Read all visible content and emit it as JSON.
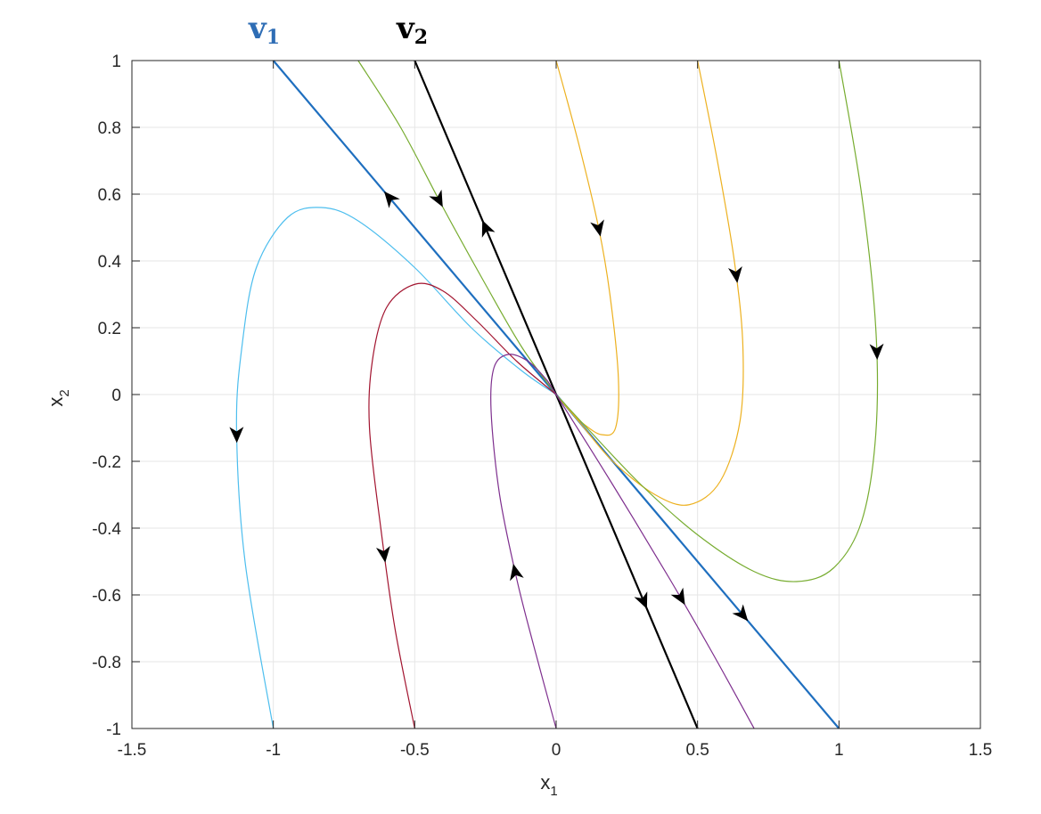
{
  "chart_data": {
    "type": "line",
    "title": "",
    "xlabel": "x",
    "xlabel_sub": "1",
    "ylabel": "x",
    "ylabel_sub": "2",
    "xlim": [
      -1.5,
      1.5
    ],
    "ylim": [
      -1,
      1
    ],
    "xticks": [
      -1.5,
      -1,
      -0.5,
      0,
      0.5,
      1,
      1.5
    ],
    "yticks": [
      -1,
      -0.8,
      -0.6,
      -0.4,
      -0.2,
      0,
      0.2,
      0.4,
      0.6,
      0.8,
      1
    ],
    "xtick_labels": [
      "-1.5",
      "-1",
      "-0.5",
      "0",
      "0.5",
      "1",
      "1.5"
    ],
    "ytick_labels": [
      "-1",
      "-0.8",
      "-0.6",
      "-0.4",
      "-0.2",
      "0",
      "0.2",
      "0.4",
      "0.6",
      "0.8",
      "1"
    ],
    "grid": true,
    "eigenvector_labels": [
      {
        "base": "v",
        "sub": "1",
        "color": "#2e6db5"
      },
      {
        "base": "v",
        "sub": "2",
        "color": "#000000"
      }
    ],
    "series": [
      {
        "color": "#1f6fbf",
        "width": 2.2,
        "x": [
          -1,
          0,
          1
        ],
        "y": [
          1,
          0,
          -1
        ],
        "arrows": [
          {
            "x": -0.59,
            "y": 0.59,
            "dir": "in"
          },
          {
            "x": 0.66,
            "y": -0.66,
            "dir": "out"
          }
        ]
      },
      {
        "color": "#000000",
        "width": 2.2,
        "x": [
          -0.5,
          0,
          0.5
        ],
        "y": [
          1,
          0,
          -1
        ],
        "arrows": [
          {
            "x": -0.25,
            "y": 0.5,
            "dir": "in"
          },
          {
            "x": 0.31,
            "y": -0.62,
            "dir": "out"
          }
        ]
      },
      {
        "color": "#77ac30",
        "width": 1.2,
        "x": [
          -0.7,
          -0.55,
          -0.4,
          -0.25,
          -0.12,
          0
        ],
        "y": [
          1,
          0.8,
          0.56,
          0.33,
          0.14,
          0
        ],
        "arrows": [
          {
            "x": -0.42,
            "y": 0.58,
            "dir": "in"
          }
        ]
      },
      {
        "color": "#edb120",
        "width": 1.2,
        "x": [
          0,
          0.08,
          0.15,
          0.19,
          0.22,
          0.21,
          0.16,
          0.1,
          0.05,
          0
        ],
        "y": [
          1,
          0.75,
          0.5,
          0.3,
          0.05,
          -0.1,
          -0.12,
          -0.09,
          -0.05,
          0
        ],
        "arrows": [
          {
            "x": 0.165,
            "y": 0.5,
            "dir": "in"
          }
        ]
      },
      {
        "color": "#edb120",
        "width": 1.2,
        "x": [
          0.5,
          0.57,
          0.63,
          0.66,
          0.65,
          0.58,
          0.47,
          0.35,
          0.2,
          0.08,
          0
        ],
        "y": [
          1,
          0.7,
          0.4,
          0.15,
          -0.08,
          -0.26,
          -0.33,
          -0.3,
          -0.2,
          -0.08,
          0
        ],
        "arrows": [
          {
            "x": 0.645,
            "y": 0.36,
            "dir": "in"
          }
        ]
      },
      {
        "color": "#77ac30",
        "width": 1.2,
        "x": [
          1,
          1.08,
          1.13,
          1.13,
          1.08,
          0.98,
          0.85,
          0.7,
          0.5,
          0.3,
          0.12,
          0
        ],
        "y": [
          1,
          0.6,
          0.2,
          -0.12,
          -0.38,
          -0.52,
          -0.56,
          -0.53,
          -0.42,
          -0.27,
          -0.11,
          0
        ],
        "arrows": [
          {
            "x": 1.13,
            "y": 0.13,
            "dir": "in"
          }
        ]
      },
      {
        "color": "#4dbeee",
        "width": 1.2,
        "x": [
          -1,
          -1.1,
          -1.13,
          -1.11,
          -1.06,
          -0.95,
          -0.83,
          -0.7,
          -0.5,
          -0.3,
          -0.12,
          0
        ],
        "y": [
          -1,
          -0.5,
          -0.1,
          0.15,
          0.38,
          0.53,
          0.56,
          0.52,
          0.38,
          0.2,
          0.07,
          0
        ],
        "arrows": [
          {
            "x": -1.12,
            "y": -0.12,
            "dir": "out"
          }
        ]
      },
      {
        "color": "#a2142f",
        "width": 1.2,
        "x": [
          -0.5,
          -0.57,
          -0.62,
          -0.66,
          -0.65,
          -0.6,
          -0.5,
          -0.4,
          -0.28,
          -0.14,
          0
        ],
        "y": [
          -1,
          -0.7,
          -0.4,
          -0.1,
          0.1,
          0.26,
          0.33,
          0.31,
          0.22,
          0.1,
          0
        ],
        "arrows": [
          {
            "x": -0.61,
            "y": -0.48,
            "dir": "out"
          }
        ]
      },
      {
        "color": "#7e2f8e",
        "width": 1.2,
        "x": [
          0,
          -0.08,
          -0.14,
          -0.2,
          -0.23,
          -0.22,
          -0.17,
          -0.1,
          -0.04,
          0,
          0.2,
          0.4,
          0.55,
          0.7
        ],
        "y": [
          -1,
          -0.75,
          -0.55,
          -0.3,
          -0.05,
          0.08,
          0.12,
          0.1,
          0.05,
          0,
          -0.27,
          -0.55,
          -0.77,
          -1
        ],
        "arrows": [
          {
            "x": -0.145,
            "y": -0.53,
            "dir": "out"
          },
          {
            "x": 0.455,
            "y": -0.6,
            "dir": "out"
          }
        ]
      }
    ]
  }
}
